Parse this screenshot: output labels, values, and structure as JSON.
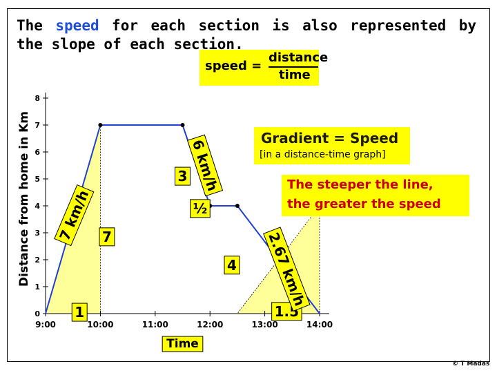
{
  "title": {
    "part1": "The ",
    "highlight": "speed",
    "part2": " for each section is also represented by the slope of each section."
  },
  "formula": {
    "lhs": "speed =",
    "numerator": "distance",
    "denominator": "time"
  },
  "gradient_box": {
    "title": "Gradient = Speed",
    "subtitle": "[in a distance-time graph]"
  },
  "steeper_box": {
    "line1": "The steeper the line,",
    "line2": "the greater the speed"
  },
  "footer": "© T Madas",
  "colors": {
    "line": "#1f3fd8",
    "highlight": "#1f4fd8",
    "fill": "#ffff99",
    "label_box": "#ffff00",
    "red_text": "#cc0000"
  },
  "chart_data": {
    "type": "line",
    "xlabel": "Time",
    "ylabel": "Distance from home in Km",
    "x_ticks": [
      "9:00",
      "10:00",
      "11:00",
      "12:00",
      "13:00",
      "14:00"
    ],
    "y_ticks": [
      "0",
      "1",
      "2",
      "3",
      "4",
      "5",
      "6",
      "7",
      "8"
    ],
    "ylim": [
      0,
      8
    ],
    "xlim": [
      0,
      5
    ],
    "grid": false,
    "points": [
      {
        "x": 0,
        "y": 0
      },
      {
        "x": 1,
        "y": 7
      },
      {
        "x": 2.5,
        "y": 7
      },
      {
        "x": 3,
        "y": 4
      },
      {
        "x": 3.5,
        "y": 4
      },
      {
        "x": 5,
        "y": 0
      }
    ],
    "shaded_triangles": [
      {
        "x0": 0,
        "x1": 1,
        "y_top": 7
      },
      {
        "x0": 3.5,
        "x1": 5,
        "y_top": 4
      }
    ],
    "annotations": [
      {
        "text": "1",
        "x": 0.62,
        "y": 0.05,
        "size": 20
      },
      {
        "text": "7",
        "x": 1.12,
        "y": 2.85,
        "size": 20
      },
      {
        "text": "3",
        "x": 2.5,
        "y": 5.1,
        "size": 20
      },
      {
        "text": "½",
        "x": 2.82,
        "y": 3.9,
        "size": 20
      },
      {
        "text": "4",
        "x": 3.4,
        "y": 1.8,
        "size": 20
      },
      {
        "text": "1.5",
        "x": 4.4,
        "y": 0.08,
        "size": 20
      },
      {
        "text": "7 km/h",
        "x": 0.52,
        "y": 3.65,
        "size": 20,
        "rotate": -67
      },
      {
        "text": "6 km/h",
        "x": 2.91,
        "y": 5.5,
        "size": 20,
        "rotate": 72
      },
      {
        "text": "2.67 km/h",
        "x": 4.4,
        "y": 1.65,
        "size": 20,
        "rotate": 69
      }
    ]
  }
}
